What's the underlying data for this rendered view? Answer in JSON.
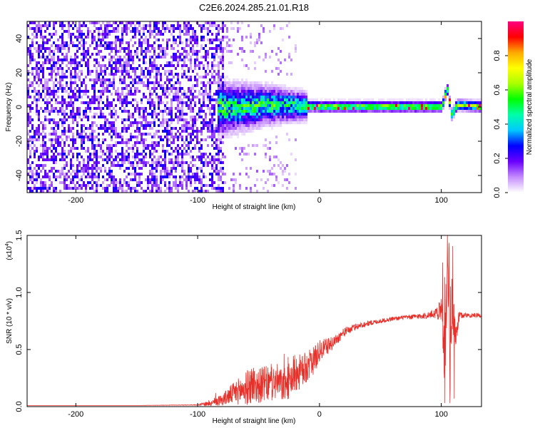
{
  "title": "C2E6.2024.285.21.01.R18",
  "chart_data": [
    {
      "type": "heatmap",
      "title": "C2E6.2024.285.21.01.R18",
      "xlabel": "Height of straight line (km)",
      "ylabel": "Frequency (Hz)",
      "xlim": [
        -240,
        133
      ],
      "ylim": [
        -50,
        50
      ],
      "x_ticks": [
        -200,
        -100,
        0,
        100
      ],
      "y_ticks": [
        -40,
        -20,
        0,
        20,
        40
      ],
      "grid": false,
      "description_points": {
        "noise_region_x": [
          -240,
          -80
        ],
        "onset_x": -85,
        "signal_center_hz": [
          [
            -80,
            0
          ],
          [
            -60,
            1
          ],
          [
            -40,
            2
          ],
          [
            -20,
            1.5
          ],
          [
            0,
            1
          ],
          [
            20,
            1
          ],
          [
            40,
            1
          ],
          [
            60,
            1
          ],
          [
            80,
            1
          ],
          [
            100,
            1
          ],
          [
            104,
            12
          ],
          [
            108,
            -4
          ],
          [
            112,
            2
          ],
          [
            133,
            1
          ]
        ]
      },
      "colorbar": {
        "label": "Normalized spectral amplitude",
        "range": [
          0,
          1
        ],
        "ticks": [
          0.0,
          0.2,
          0.4,
          0.6,
          0.8
        ],
        "colors": [
          "#ffffff",
          "#c48cff",
          "#6a00ff",
          "#0000ff",
          "#00c8ff",
          "#00ffaa",
          "#00ff00",
          "#aaff00",
          "#ffff00",
          "#ffaa00",
          "#ff0000",
          "#ff0080"
        ]
      }
    },
    {
      "type": "line",
      "xlabel": "Height of straight line (km)",
      "ylabel": "SNR (10 * v/v)",
      "multiplier_label": "(x10",
      "multiplier_exp": "4",
      "multiplier_close": ")",
      "xlim": [
        -240,
        133
      ],
      "ylim": [
        0,
        1.5
      ],
      "x_ticks": [
        -200,
        -100,
        0,
        100
      ],
      "y_ticks": [
        0.0,
        0.5,
        1.0,
        1.5
      ],
      "grid": false,
      "series": [
        {
          "color": "#e8302a",
          "x": [
            -240,
            -200,
            -150,
            -100,
            -90,
            -80,
            -70,
            -60,
            -55,
            -50,
            -45,
            -40,
            -35,
            -30,
            -25,
            -20,
            -15,
            -10,
            -5,
            0,
            5,
            10,
            15,
            20,
            30,
            40,
            50,
            60,
            70,
            80,
            90,
            95,
            100,
            103,
            105,
            107,
            109,
            111,
            115,
            120,
            133
          ],
          "y": [
            0.01,
            0.01,
            0.01,
            0.015,
            0.03,
            0.06,
            0.12,
            0.16,
            0.2,
            0.18,
            0.2,
            0.19,
            0.22,
            0.18,
            0.22,
            0.3,
            0.3,
            0.35,
            0.4,
            0.48,
            0.52,
            0.55,
            0.6,
            0.65,
            0.7,
            0.73,
            0.75,
            0.77,
            0.78,
            0.79,
            0.8,
            0.82,
            0.85,
            0.5,
            1.2,
            0.3,
            0.9,
            0.6,
            0.8,
            0.8,
            0.8
          ],
          "noise": [
            0,
            0,
            0,
            0.003,
            0.03,
            0.05,
            0.1,
            0.15,
            0.18,
            0.15,
            0.16,
            0.15,
            0.16,
            0.14,
            0.16,
            0.18,
            0.15,
            0.14,
            0.12,
            0.1,
            0.08,
            0.06,
            0.05,
            0.04,
            0.03,
            0.025,
            0.02,
            0.02,
            0.02,
            0.025,
            0.03,
            0.05,
            0.1,
            0.35,
            0.35,
            0.35,
            0.3,
            0.2,
            0.03,
            0.02,
            0.02
          ]
        }
      ]
    }
  ]
}
